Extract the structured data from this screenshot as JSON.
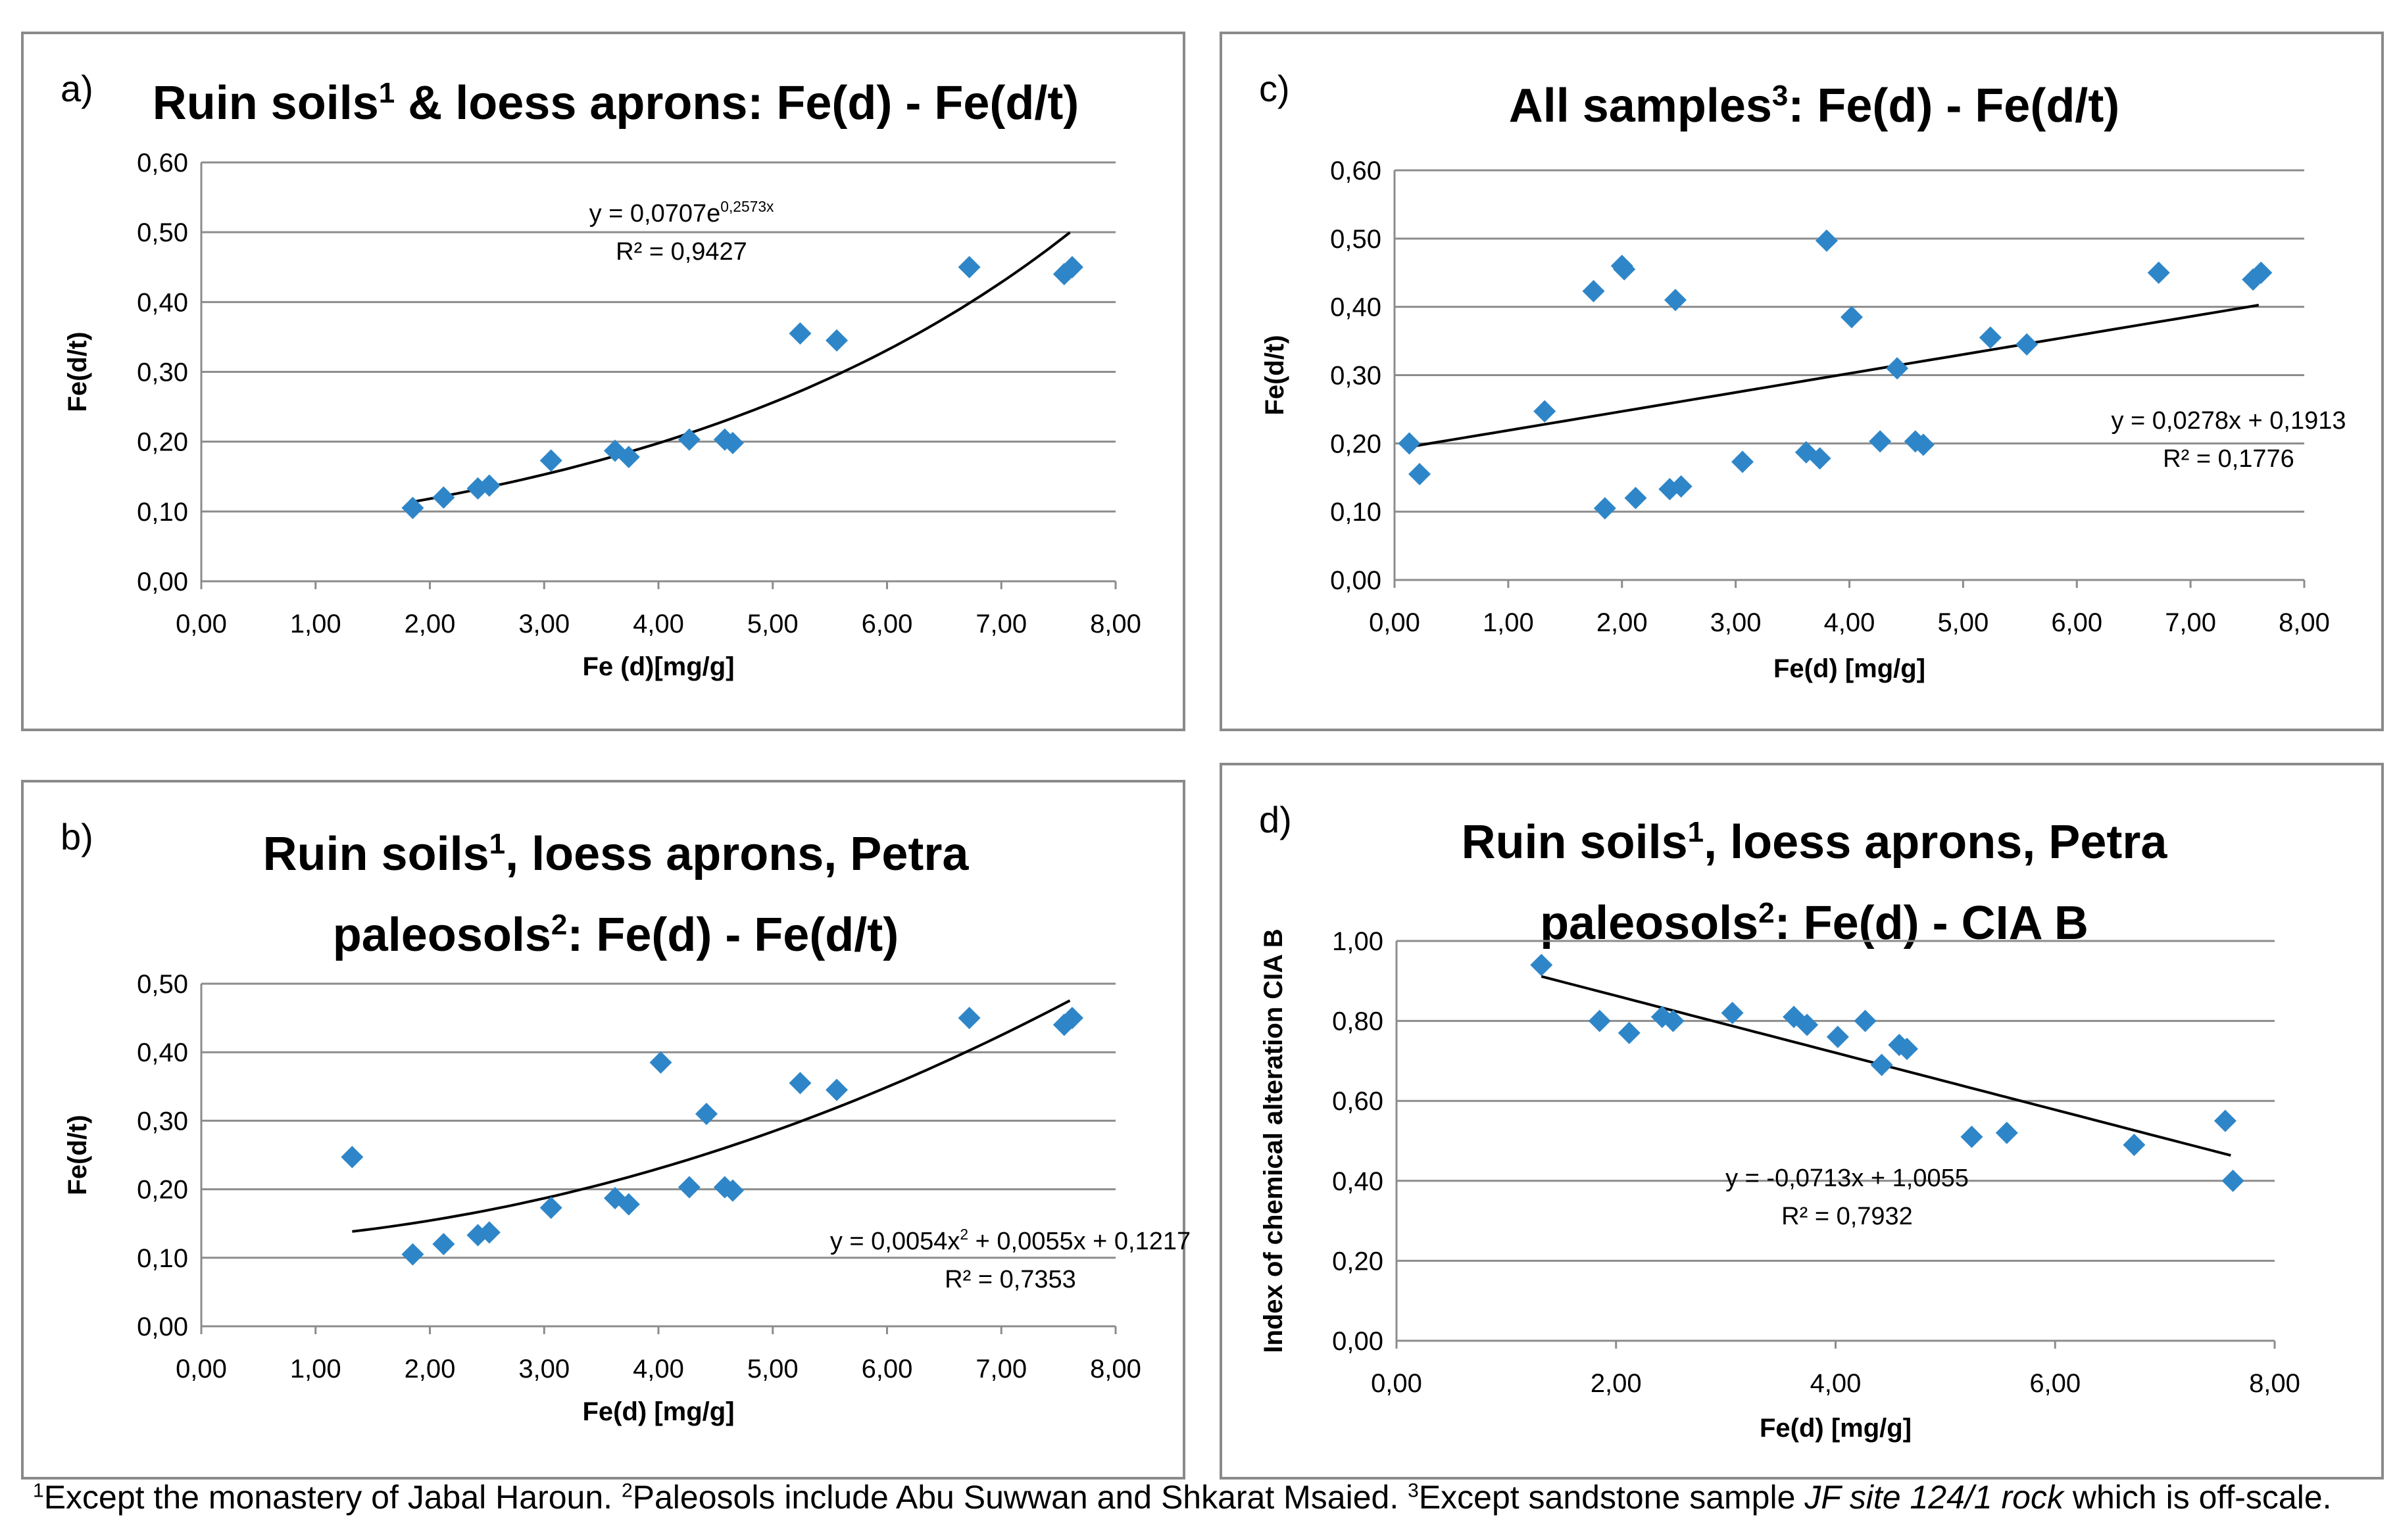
{
  "chart_data": [
    {
      "id": "a",
      "type": "scatter",
      "panel_label": "a)",
      "title_parts": [
        {
          "text": "Ruin soils"
        },
        {
          "text": "1",
          "sup": true
        },
        {
          "text": " & loess aprons: Fe(d) - Fe(d/t)"
        }
      ],
      "xlabel": "Fe (d)[mg/g]",
      "ylabel": "Fe(d/t)",
      "xlim": [
        0,
        8
      ],
      "ylim": [
        0,
        0.6
      ],
      "xticks": [
        "0,00",
        "1,00",
        "2,00",
        "3,00",
        "4,00",
        "5,00",
        "6,00",
        "7,00",
        "8,00"
      ],
      "yticks": [
        "0,00",
        "0,10",
        "0,20",
        "0,30",
        "0,40",
        "0,50",
        "0,60"
      ],
      "x": [
        1.85,
        2.12,
        2.42,
        2.52,
        3.06,
        3.62,
        3.74,
        4.27,
        4.58,
        4.65,
        5.24,
        5.56,
        6.72,
        7.55,
        7.62
      ],
      "y": [
        0.105,
        0.12,
        0.133,
        0.137,
        0.173,
        0.187,
        0.178,
        0.203,
        0.203,
        0.198,
        0.355,
        0.345,
        0.45,
        0.44,
        0.45
      ],
      "trend": {
        "kind": "exp",
        "a": 0.0707,
        "b": 0.2573,
        "from": 1.85,
        "to": 7.6
      },
      "equation": [
        {
          "text": "y = 0,0707e"
        },
        {
          "text": "0,2573x",
          "sup": true
        }
      ],
      "r2": "R² = 0,9427",
      "annotation_pos": "top-center"
    },
    {
      "id": "b",
      "type": "scatter",
      "panel_label": "b)",
      "title_lines": [
        [
          {
            "text": "Ruin soils"
          },
          {
            "text": "1",
            "sup": true
          },
          {
            "text": ", loess aprons, Petra"
          }
        ],
        [
          {
            "text": "paleosols"
          },
          {
            "text": "2",
            "sup": true
          },
          {
            "text": ": Fe(d) - Fe(d/t)"
          }
        ]
      ],
      "xlabel": "Fe(d) [mg/g]",
      "ylabel": "Fe(d/t)",
      "xlim": [
        0,
        8
      ],
      "ylim": [
        0,
        0.5
      ],
      "xticks": [
        "0,00",
        "1,00",
        "2,00",
        "3,00",
        "4,00",
        "5,00",
        "6,00",
        "7,00",
        "8,00"
      ],
      "yticks": [
        "0,00",
        "0,10",
        "0,20",
        "0,30",
        "0,40",
        "0,50"
      ],
      "x": [
        1.32,
        1.85,
        2.12,
        2.42,
        2.52,
        3.06,
        3.62,
        3.74,
        4.02,
        4.27,
        4.42,
        4.58,
        4.65,
        5.24,
        5.56,
        6.72,
        7.55,
        7.62
      ],
      "y": [
        0.247,
        0.105,
        0.12,
        0.133,
        0.137,
        0.173,
        0.187,
        0.178,
        0.385,
        0.203,
        0.31,
        0.203,
        0.198,
        0.355,
        0.345,
        0.45,
        0.44,
        0.45
      ],
      "trend": {
        "kind": "poly2",
        "a": 0.0054,
        "b": 0.0055,
        "c": 0.1217,
        "from": 1.32,
        "to": 7.6
      },
      "equation": [
        {
          "text": "y = 0,0054x"
        },
        {
          "text": "2",
          "sup": true
        },
        {
          "text": " + 0,0055x + 0,1217"
        }
      ],
      "r2": "R² = 0,7353",
      "annotation_pos": "bottom-right"
    },
    {
      "id": "c",
      "type": "scatter",
      "panel_label": "c)",
      "title_parts": [
        {
          "text": "All samples"
        },
        {
          "text": "3",
          "sup": true
        },
        {
          "text": ": Fe(d) - Fe(d/t)"
        }
      ],
      "xlabel": "Fe(d) [mg/g]",
      "ylabel": "Fe(d/t)",
      "xlim": [
        0,
        8
      ],
      "ylim": [
        0,
        0.6
      ],
      "xticks": [
        "0,00",
        "1,00",
        "2,00",
        "3,00",
        "4,00",
        "5,00",
        "6,00",
        "7,00",
        "8,00"
      ],
      "yticks": [
        "0,00",
        "0,10",
        "0,20",
        "0,30",
        "0,40",
        "0,50",
        "0,60"
      ],
      "x": [
        0.13,
        0.22,
        1.32,
        1.75,
        1.85,
        2.0,
        2.02,
        2.12,
        2.42,
        2.47,
        2.52,
        3.06,
        3.62,
        3.74,
        3.8,
        4.02,
        4.27,
        4.42,
        4.58,
        4.65,
        5.24,
        5.56,
        6.72,
        7.55,
        7.62
      ],
      "y": [
        0.2,
        0.155,
        0.247,
        0.423,
        0.105,
        0.46,
        0.455,
        0.12,
        0.133,
        0.41,
        0.137,
        0.173,
        0.187,
        0.178,
        0.497,
        0.385,
        0.203,
        0.31,
        0.203,
        0.198,
        0.355,
        0.345,
        0.45,
        0.44,
        0.45
      ],
      "trend": {
        "kind": "linear",
        "m": 0.0278,
        "c": 0.1913,
        "from": 0.13,
        "to": 7.6
      },
      "equation": [
        {
          "text": "y = 0,0278x + 0,1913"
        }
      ],
      "r2": "R² = 0,1776",
      "annotation_pos": "right"
    },
    {
      "id": "d",
      "type": "scatter",
      "panel_label": "d)",
      "title_lines": [
        [
          {
            "text": "Ruin soils"
          },
          {
            "text": "1",
            "sup": true
          },
          {
            "text": ", loess aprons, Petra"
          }
        ],
        [
          {
            "text": "paleosols"
          },
          {
            "text": "2",
            "sup": true
          },
          {
            "text": ": Fe(d) - CIA B"
          }
        ]
      ],
      "xlabel": "Fe(d) [mg/g]",
      "ylabel": "Index of chemical alteration CIA B",
      "xlim": [
        0,
        8
      ],
      "ylim": [
        0,
        1.0
      ],
      "xticks": [
        "0,00",
        "2,00",
        "4,00",
        "6,00",
        "8,00"
      ],
      "yticks": [
        "0,00",
        "0,20",
        "0,40",
        "0,60",
        "0,80",
        "1,00"
      ],
      "x": [
        1.32,
        1.85,
        2.12,
        2.42,
        2.52,
        3.06,
        3.62,
        3.74,
        4.02,
        4.27,
        4.42,
        4.58,
        4.65,
        5.24,
        5.56,
        6.72,
        7.55,
        7.62
      ],
      "y": [
        0.94,
        0.8,
        0.77,
        0.81,
        0.8,
        0.82,
        0.81,
        0.79,
        0.76,
        0.8,
        0.69,
        0.74,
        0.73,
        0.51,
        0.52,
        0.49,
        0.55,
        0.4
      ],
      "trend": {
        "kind": "linear",
        "m": -0.0713,
        "c": 1.0055,
        "from": 1.32,
        "to": 7.6
      },
      "equation": [
        {
          "text": "y = -0,0713x + 1,0055"
        }
      ],
      "r2": "R² = 0,7932",
      "annotation_pos": "center"
    }
  ],
  "footnote": [
    {
      "text": "1",
      "sup": true
    },
    {
      "text": "Except the monastery of Jabal Haroun. "
    },
    {
      "text": "2",
      "sup": true
    },
    {
      "text": "Paleosols include Abu Suwwan and Shkarat Msaied. "
    },
    {
      "text": "3",
      "sup": true
    },
    {
      "text": "Except sandstone sample "
    },
    {
      "text": "JF site 124/1 rock",
      "italic": true
    },
    {
      "text": " which is off-scale."
    }
  ],
  "colors": {
    "marker": "#2e86c8",
    "trend": "#000000",
    "grid": "#8c8c8c",
    "axis": "#8c8c8c"
  }
}
